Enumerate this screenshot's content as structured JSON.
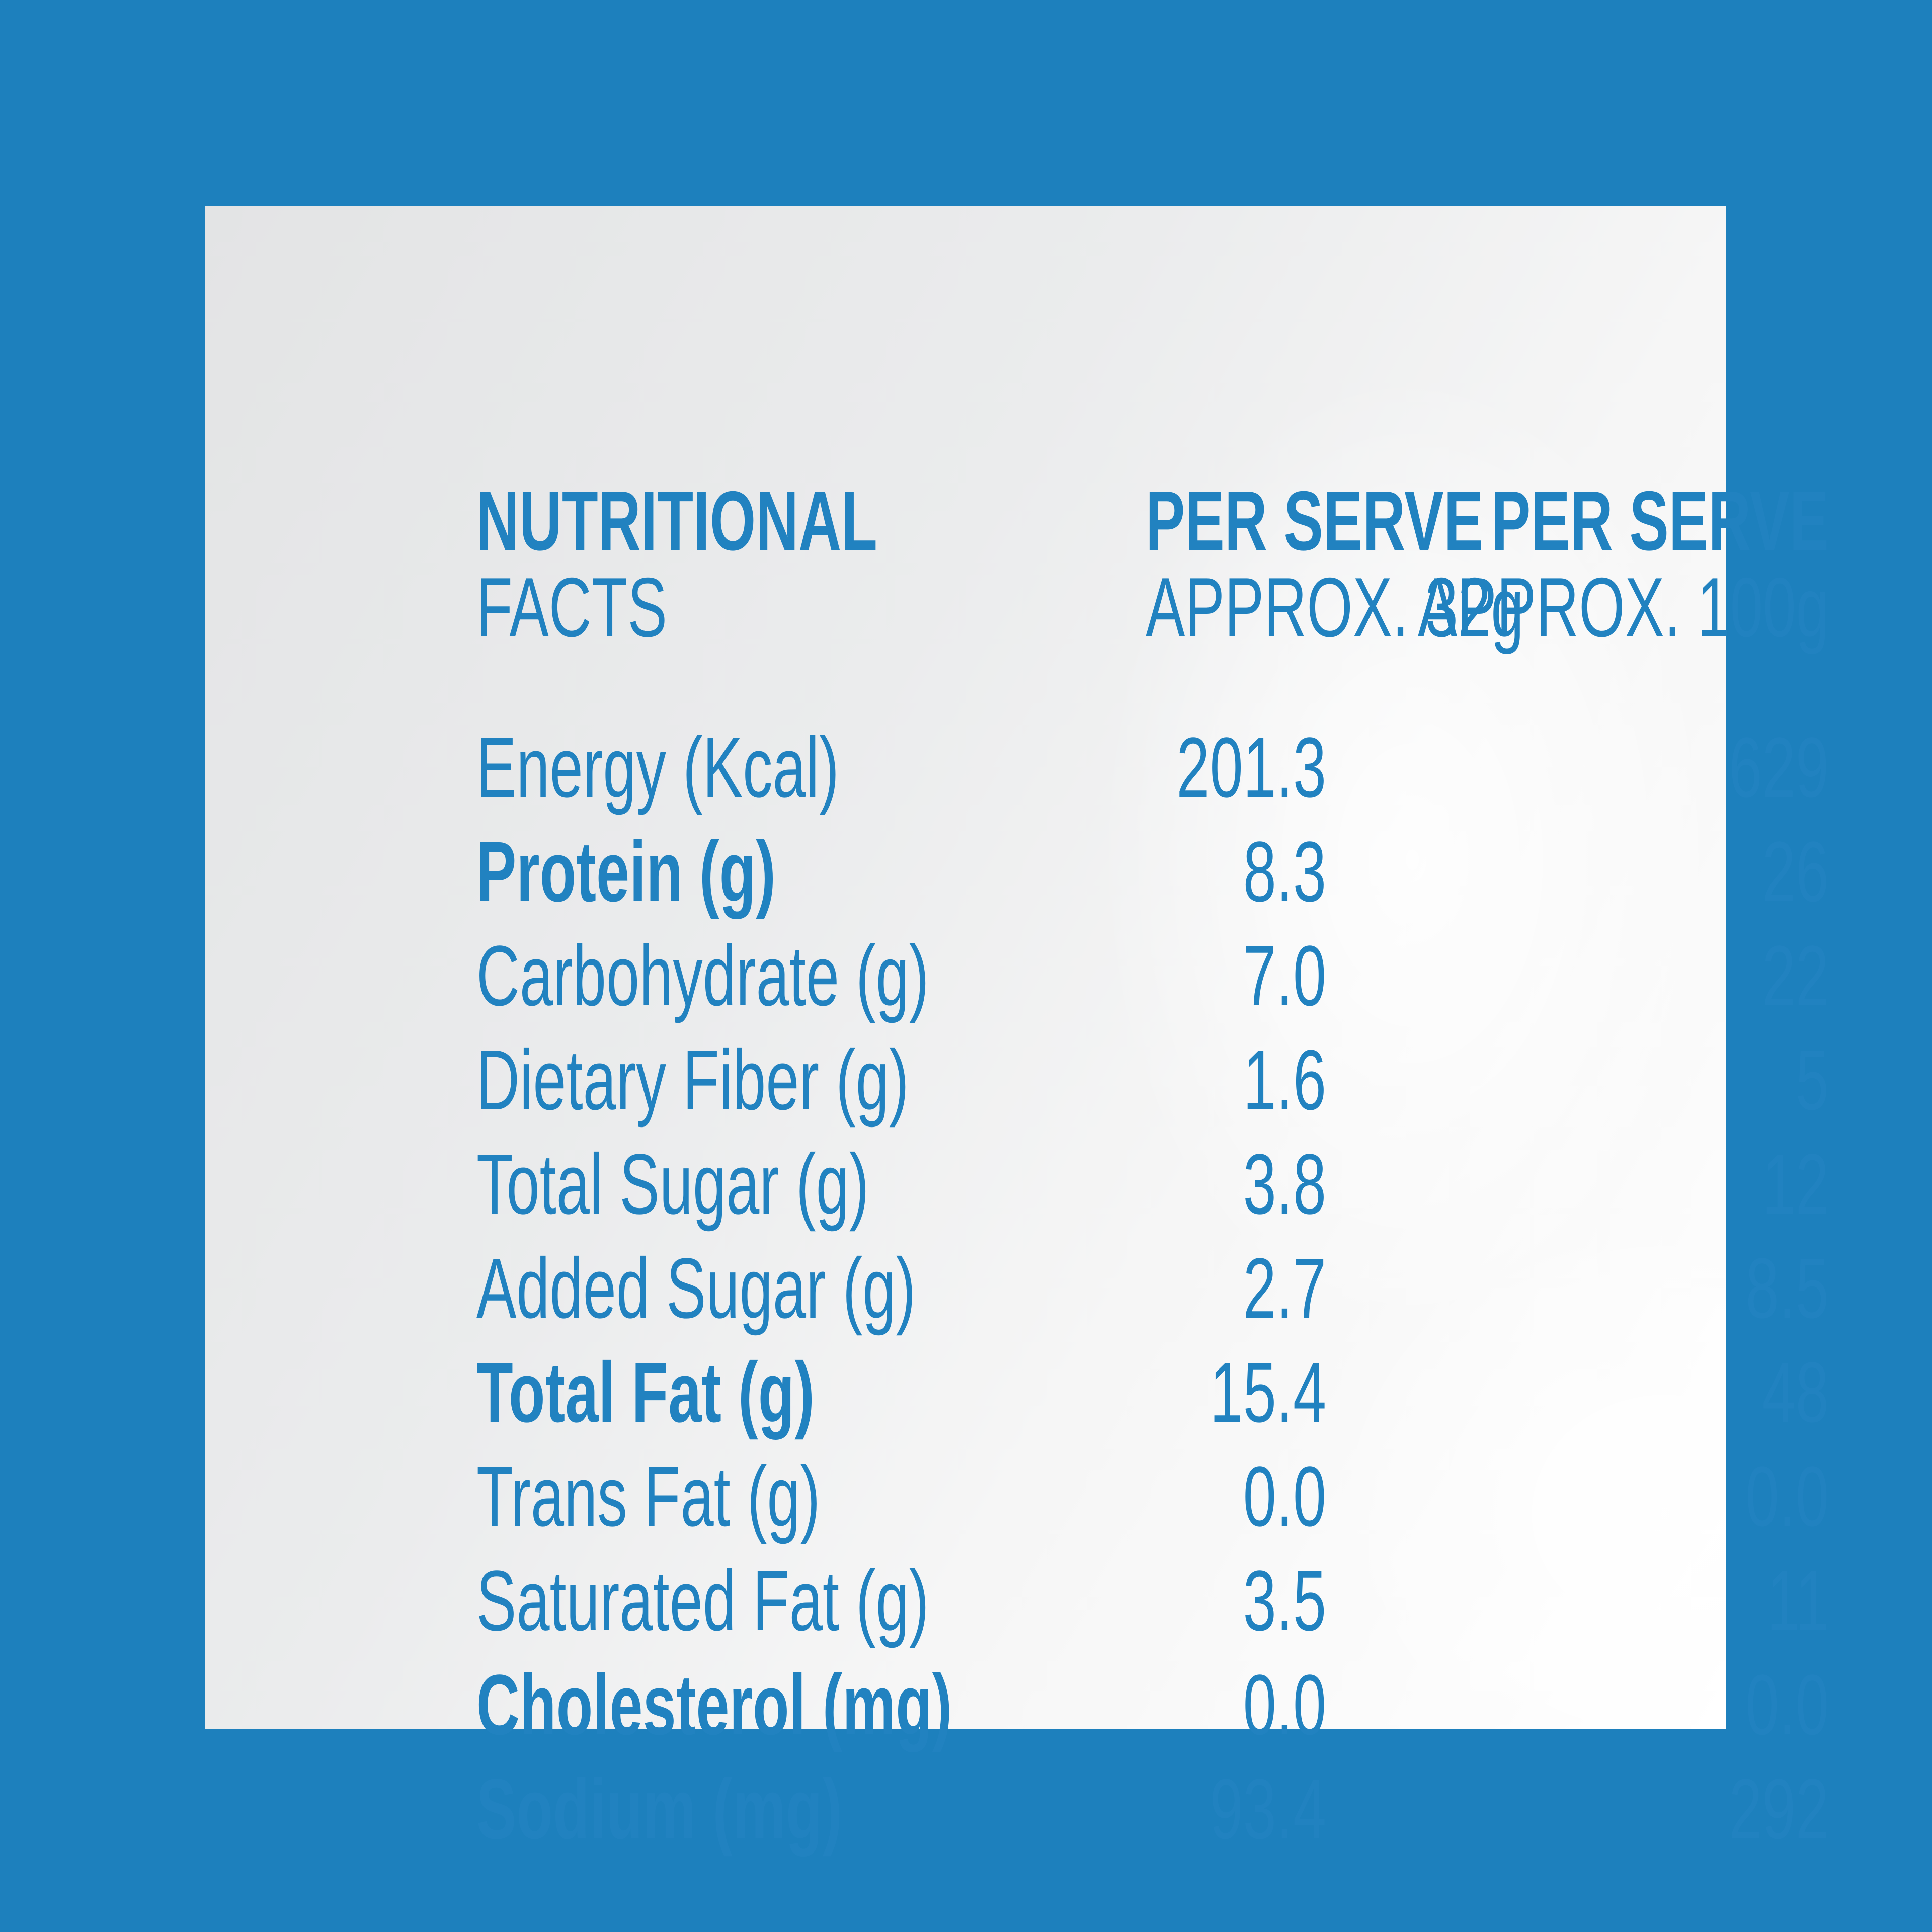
{
  "header": {
    "col0_line1": "NUTRITIONAL",
    "col0_line2": "FACTS",
    "col1_line1": "PER SERVE",
    "col1_line2": "APPROX. 32g",
    "col2_line1": "PER SERVE",
    "col2_line2": "APPROX. 100g"
  },
  "rows": [
    {
      "label": "Energy (Kcal)",
      "per_32g": "201.3",
      "per_100g": "629",
      "bold": false
    },
    {
      "label": "Protein (g)",
      "per_32g": "8.3",
      "per_100g": "26",
      "bold": true
    },
    {
      "label": "Carbohydrate (g)",
      "per_32g": "7.0",
      "per_100g": "22",
      "bold": false
    },
    {
      "label": "Dietary Fiber (g)",
      "per_32g": "1.6",
      "per_100g": "5",
      "bold": false
    },
    {
      "label": "Total Sugar (g)",
      "per_32g": "3.8",
      "per_100g": "12",
      "bold": false
    },
    {
      "label": "Added Sugar (g)",
      "per_32g": "2.7",
      "per_100g": "8.5",
      "bold": false
    },
    {
      "label": "Total Fat (g)",
      "per_32g": "15.4",
      "per_100g": "48",
      "bold": true
    },
    {
      "label": "Trans Fat (g)",
      "per_32g": "0.0",
      "per_100g": "0.0",
      "bold": false
    },
    {
      "label": "Saturated Fat (g)",
      "per_32g": "3.5",
      "per_100g": "11",
      "bold": false
    },
    {
      "label": "Cholesterol (mg)",
      "per_32g": "0.0",
      "per_100g": "0.0",
      "bold": true
    },
    {
      "label": "Sodium (mg)",
      "per_32g": "93.4",
      "per_100g": "292",
      "bold": true
    }
  ],
  "colors": {
    "background": "#1d80bd",
    "text": "#2182c0",
    "panel": "#ebeced"
  }
}
